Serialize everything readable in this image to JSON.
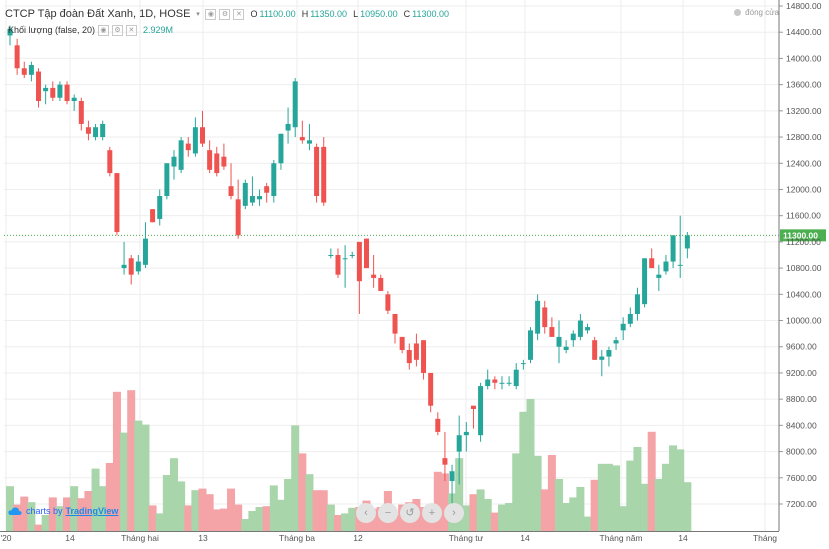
{
  "header": {
    "symbol": "CTCP Tập đoàn Đất Xanh, 1D, HOSE",
    "ohlc": [
      {
        "key": "O",
        "value": "11100.00"
      },
      {
        "key": "H",
        "value": "11350.00"
      },
      {
        "key": "L",
        "value": "10950.00"
      },
      {
        "key": "C",
        "value": "11300.00"
      }
    ],
    "volume_label": "Khối lượng (false, 20)",
    "volume_value": "2.929M"
  },
  "status_text": "đóng cửa",
  "watermark": {
    "prefix": "charts by",
    "brand": "TradingView"
  },
  "nav_buttons": [
    {
      "name": "scroll-left",
      "glyph": "‹"
    },
    {
      "name": "zoom-out",
      "glyph": "−"
    },
    {
      "name": "reset",
      "glyph": "↺"
    },
    {
      "name": "zoom-in",
      "glyph": "+"
    },
    {
      "name": "scroll-right",
      "glyph": "›"
    }
  ],
  "colors": {
    "up": "#26a69a",
    "down": "#ef5350",
    "vol_up": "#a8d5aa",
    "vol_down": "#f4a3a7",
    "grid": "#eeeeee",
    "axis_text": "#555555",
    "last_price": "#4caf50"
  },
  "chart_data": {
    "type": "candlestick",
    "price_axis": {
      "ticks": [
        7200,
        7600,
        8000,
        8400,
        8800,
        9200,
        9600,
        10000,
        10400,
        10800,
        11200,
        11600,
        12000,
        12400,
        12800,
        13200,
        13600,
        14000,
        14400,
        14800
      ],
      "range": [
        6900,
        14850
      ]
    },
    "time_axis_labels": [
      "'20",
      "14",
      "Tháng hai",
      "13",
      "Tháng ba",
      "12",
      "Tháng tư",
      "14",
      "Tháng năm",
      "14",
      "Tháng"
    ],
    "last_price": 11300,
    "last_price_label": "11300.00",
    "candles": [
      [
        14350,
        14500,
        14200,
        14450
      ],
      [
        14200,
        14300,
        13750,
        13850
      ],
      [
        13850,
        13950,
        13700,
        13750
      ],
      [
        13750,
        13950,
        13650,
        13900
      ],
      [
        13800,
        13850,
        13250,
        13350
      ],
      [
        13500,
        13600,
        13300,
        13550
      ],
      [
        13550,
        13650,
        13350,
        13400
      ],
      [
        13400,
        13650,
        13350,
        13600
      ],
      [
        13600,
        13650,
        13300,
        13350
      ],
      [
        13350,
        13450,
        13200,
        13400
      ],
      [
        13350,
        13400,
        12900,
        13000
      ],
      [
        12950,
        13050,
        12750,
        12850
      ],
      [
        12800,
        13000,
        12750,
        12950
      ],
      [
        12800,
        13050,
        12750,
        13000
      ],
      [
        12600,
        12650,
        12200,
        12250
      ],
      [
        12250,
        12250,
        11300,
        11350
      ],
      [
        10800,
        11200,
        10700,
        10850
      ],
      [
        10950,
        11000,
        10550,
        10700
      ],
      [
        10750,
        11000,
        10700,
        10900
      ],
      [
        10850,
        11500,
        10800,
        11250
      ],
      [
        11700,
        11700,
        11500,
        11500
      ],
      [
        11550,
        12000,
        11450,
        11900
      ],
      [
        11900,
        12400,
        11850,
        12400
      ],
      [
        12350,
        12600,
        12150,
        12500
      ],
      [
        12300,
        12800,
        12250,
        12750
      ],
      [
        12700,
        12800,
        12500,
        12600
      ],
      [
        12550,
        13100,
        12500,
        12950
      ],
      [
        12950,
        13200,
        12650,
        12700
      ],
      [
        12600,
        12750,
        12250,
        12300
      ],
      [
        12550,
        12650,
        12200,
        12250
      ],
      [
        12500,
        12700,
        12300,
        12350
      ],
      [
        12050,
        12400,
        11850,
        11900
      ],
      [
        11850,
        12150,
        11250,
        11300
      ],
      [
        11750,
        12150,
        11700,
        12100
      ],
      [
        11800,
        12200,
        11750,
        11900
      ],
      [
        11850,
        12000,
        11750,
        11900
      ],
      [
        12050,
        12100,
        11800,
        11950
      ],
      [
        11900,
        12450,
        11800,
        12400
      ],
      [
        12400,
        12850,
        12300,
        12850
      ],
      [
        12900,
        13250,
        12700,
        13000
      ],
      [
        12950,
        13700,
        12800,
        13650
      ],
      [
        12800,
        13050,
        12700,
        12750
      ],
      [
        12700,
        13000,
        12600,
        12750
      ],
      [
        12650,
        12700,
        11800,
        11900
      ],
      [
        12650,
        12800,
        11750,
        11800
      ],
      [
        11000,
        11100,
        10950,
        11000
      ],
      [
        11000,
        11100,
        10650,
        10700
      ],
      [
        10950,
        11150,
        10500,
        10950
      ],
      [
        11000,
        11050,
        10950,
        11000
      ],
      [
        11200,
        11200,
        10100,
        10600
      ],
      [
        11250,
        11250,
        10800,
        10800
      ],
      [
        10700,
        11000,
        10500,
        10650
      ],
      [
        10650,
        10700,
        10500,
        10450
      ],
      [
        10400,
        10450,
        10100,
        10150
      ],
      [
        10100,
        10100,
        9650,
        9800
      ],
      [
        9750,
        9750,
        9500,
        9550
      ],
      [
        9550,
        9650,
        9250,
        9350
      ],
      [
        9650,
        9800,
        9300,
        9400
      ],
      [
        9700,
        9700,
        9100,
        9200
      ],
      [
        9200,
        9200,
        8600,
        8700
      ],
      [
        8500,
        8600,
        8250,
        8300
      ],
      [
        7900,
        8300,
        7550,
        7800
      ],
      [
        7550,
        7800,
        7200,
        7700
      ],
      [
        8000,
        8550,
        7500,
        8250
      ],
      [
        8250,
        8450,
        8000,
        8300
      ],
      [
        8700,
        8700,
        8350,
        8650
      ],
      [
        8250,
        9050,
        8150,
        9000
      ],
      [
        9000,
        9250,
        8950,
        9100
      ],
      [
        9100,
        9150,
        8950,
        9050
      ],
      [
        9050,
        9150,
        8950,
        9050
      ],
      [
        9050,
        9150,
        9000,
        9050
      ],
      [
        9000,
        9350,
        8950,
        9250
      ],
      [
        9350,
        9400,
        9250,
        9350
      ],
      [
        9400,
        9900,
        9350,
        9850
      ],
      [
        9800,
        10400,
        9700,
        10300
      ],
      [
        10200,
        10300,
        9800,
        9900
      ],
      [
        9900,
        10050,
        9750,
        9750
      ],
      [
        9600,
        10000,
        9350,
        9750
      ],
      [
        9550,
        9700,
        9500,
        9600
      ],
      [
        9700,
        9850,
        9600,
        9800
      ],
      [
        9750,
        10100,
        9700,
        10000
      ],
      [
        9850,
        9950,
        9800,
        9900
      ],
      [
        9700,
        9750,
        9400,
        9400
      ],
      [
        9400,
        9550,
        9150,
        9450
      ],
      [
        9450,
        9600,
        9300,
        9550
      ],
      [
        9650,
        9750,
        9550,
        9700
      ],
      [
        9850,
        10050,
        9700,
        9950
      ],
      [
        9950,
        10200,
        9900,
        10100
      ],
      [
        10100,
        10500,
        10000,
        10400
      ],
      [
        10250,
        10950,
        10200,
        10950
      ],
      [
        10950,
        11100,
        10800,
        10800
      ],
      [
        10650,
        10850,
        10450,
        10700
      ],
      [
        10750,
        11000,
        10700,
        10900
      ],
      [
        10900,
        11300,
        10800,
        11300
      ],
      [
        10850,
        11600,
        10650,
        10850
      ],
      [
        11100,
        11350,
        10950,
        11300
      ]
    ],
    "volumes": [
      0.56,
      0.33,
      0.43,
      0.36,
      0.08,
      0.2,
      0.42,
      0.31,
      0.42,
      0.56,
      0.41,
      0.5,
      0.78,
      0.56,
      0.85,
      1.74,
      1.23,
      1.76,
      1.38,
      1.33,
      0.32,
      0.22,
      0.7,
      0.91,
      0.62,
      0.32,
      0.51,
      0.53,
      0.46,
      0.27,
      0.28,
      0.53,
      0.33,
      0.15,
      0.25,
      0.3,
      0.31,
      0.57,
      0.39,
      0.65,
      1.32,
      0.97,
      0.71,
      0.51,
      0.51,
      0.33,
      0.2,
      0.22,
      0.29,
      0.3,
      0.38,
      0.28,
      0.3,
      0.5,
      0.2,
      0.33,
      0.36,
      0.4,
      0.3,
      0.18,
      0.74,
      0.72,
      0.47,
      0.91,
      0.32,
      0.46,
      0.52,
      0.4,
      0.23,
      0.33,
      0.35,
      0.97,
      1.49,
      1.65,
      0.94,
      0.52,
      0.95,
      0.65,
      0.35,
      0.42,
      0.55,
      0.18,
      0.64,
      0.84,
      0.84,
      0.82,
      0.31,
      0.88,
      1.05,
      0.59,
      1.24,
      0.65,
      0.84,
      1.07,
      1.02,
      0.61
    ]
  }
}
